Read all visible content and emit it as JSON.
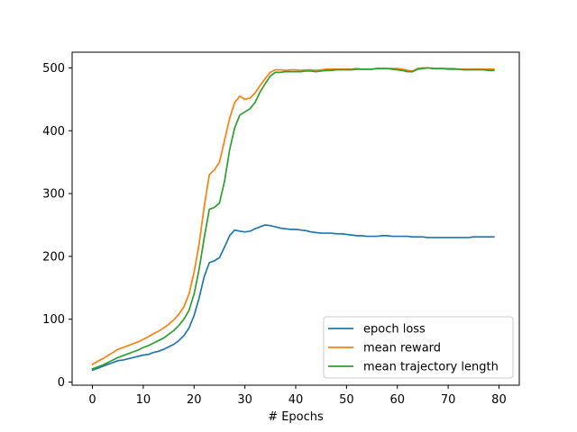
{
  "chart_data": {
    "type": "line",
    "title": "",
    "xlabel": "# Epochs",
    "ylabel": "",
    "xlim": [
      -4,
      84
    ],
    "ylim": [
      -5,
      525
    ],
    "xticks": [
      0,
      10,
      20,
      30,
      40,
      50,
      60,
      70,
      80
    ],
    "yticks": [
      0,
      100,
      200,
      300,
      400,
      500
    ],
    "grid": false,
    "legend_position": "lower-right",
    "series": [
      {
        "name": "epoch loss",
        "color": "#1f77b4",
        "x": [
          0,
          1,
          2,
          3,
          4,
          5,
          6,
          7,
          8,
          9,
          10,
          11,
          12,
          13,
          14,
          15,
          16,
          17,
          18,
          19,
          20,
          21,
          22,
          23,
          24,
          25,
          26,
          27,
          28,
          29,
          30,
          31,
          32,
          33,
          34,
          35,
          36,
          37,
          38,
          39,
          40,
          41,
          42,
          43,
          44,
          45,
          46,
          47,
          48,
          49,
          50,
          51,
          52,
          53,
          54,
          55,
          56,
          57,
          58,
          59,
          60,
          61,
          62,
          63,
          64,
          65,
          66,
          67,
          68,
          69,
          70,
          71,
          72,
          73,
          74,
          75,
          76,
          77,
          78,
          79
        ],
        "values": [
          19,
          22,
          25,
          28,
          31,
          34,
          35,
          37,
          39,
          41,
          43,
          44,
          47,
          49,
          52,
          56,
          60,
          66,
          74,
          86,
          106,
          134,
          168,
          190,
          193,
          198,
          215,
          233,
          242,
          240,
          239,
          240,
          244,
          247,
          250,
          249,
          247,
          245,
          244,
          243,
          243,
          242,
          241,
          239,
          238,
          237,
          237,
          237,
          236,
          236,
          235,
          234,
          233,
          233,
          232,
          232,
          232,
          233,
          233,
          232,
          232,
          232,
          232,
          231,
          231,
          231,
          230,
          230,
          230,
          230,
          230,
          230,
          230,
          230,
          230,
          231,
          231,
          231,
          231,
          231
        ]
      },
      {
        "name": "mean reward",
        "color": "#ff7f0e",
        "x": [
          0,
          1,
          2,
          3,
          4,
          5,
          6,
          7,
          8,
          9,
          10,
          11,
          12,
          13,
          14,
          15,
          16,
          17,
          18,
          19,
          20,
          21,
          22,
          23,
          24,
          25,
          26,
          27,
          28,
          29,
          30,
          31,
          32,
          33,
          34,
          35,
          36,
          37,
          38,
          39,
          40,
          41,
          42,
          43,
          44,
          45,
          46,
          47,
          48,
          49,
          50,
          51,
          52,
          53,
          54,
          55,
          56,
          57,
          58,
          59,
          60,
          61,
          62,
          63,
          64,
          65,
          66,
          67,
          68,
          69,
          70,
          71,
          72,
          73,
          74,
          75,
          76,
          77,
          78,
          79
        ],
        "values": [
          28,
          33,
          37,
          42,
          47,
          52,
          55,
          58,
          61,
          64,
          68,
          72,
          77,
          81,
          86,
          92,
          99,
          108,
          120,
          140,
          175,
          220,
          280,
          330,
          338,
          350,
          385,
          420,
          445,
          455,
          450,
          452,
          460,
          472,
          483,
          493,
          497,
          497,
          496,
          497,
          497,
          496,
          497,
          497,
          496,
          497,
          498,
          498,
          498,
          498,
          498,
          498,
          499,
          498,
          498,
          498,
          499,
          499,
          499,
          499,
          499,
          498,
          496,
          495,
          499,
          500,
          500,
          499,
          499,
          499,
          499,
          499,
          498,
          498,
          498,
          498,
          498,
          498,
          498,
          498
        ]
      },
      {
        "name": "mean trajectory length",
        "color": "#2ca02c",
        "x": [
          0,
          1,
          2,
          3,
          4,
          5,
          6,
          7,
          8,
          9,
          10,
          11,
          12,
          13,
          14,
          15,
          16,
          17,
          18,
          19,
          20,
          21,
          22,
          23,
          24,
          25,
          26,
          27,
          28,
          29,
          30,
          31,
          32,
          33,
          34,
          35,
          36,
          37,
          38,
          39,
          40,
          41,
          42,
          43,
          44,
          45,
          46,
          47,
          48,
          49,
          50,
          51,
          52,
          53,
          54,
          55,
          56,
          57,
          58,
          59,
          60,
          61,
          62,
          63,
          64,
          65,
          66,
          67,
          68,
          69,
          70,
          71,
          72,
          73,
          74,
          75,
          76,
          77,
          78,
          79
        ],
        "values": [
          21,
          24,
          27,
          31,
          35,
          39,
          42,
          45,
          48,
          51,
          55,
          58,
          62,
          66,
          70,
          76,
          82,
          90,
          100,
          114,
          140,
          180,
          230,
          275,
          278,
          285,
          320,
          370,
          405,
          425,
          430,
          435,
          445,
          462,
          475,
          487,
          493,
          493,
          494,
          494,
          494,
          494,
          495,
          495,
          494,
          495,
          496,
          496,
          497,
          497,
          497,
          497,
          498,
          498,
          498,
          498,
          499,
          499,
          499,
          498,
          497,
          496,
          494,
          494,
          498,
          499,
          500,
          499,
          499,
          499,
          498,
          498,
          498,
          497,
          497,
          497,
          497,
          497,
          496,
          496
        ]
      }
    ]
  }
}
